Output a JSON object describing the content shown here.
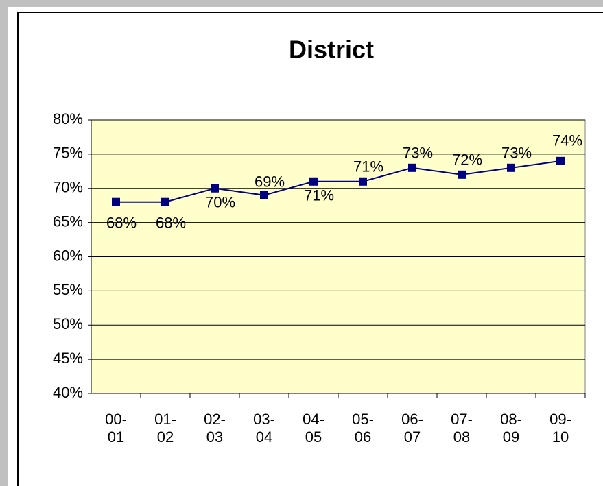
{
  "chart_data": {
    "type": "line",
    "title": "District",
    "categories": [
      "00-01",
      "01-02",
      "02-03",
      "03-04",
      "04-05",
      "05-06",
      "06-07",
      "07-08",
      "08-09",
      "09-10"
    ],
    "series": [
      {
        "name": "District",
        "color": "#000080",
        "values": [
          68,
          68,
          70,
          69,
          71,
          71,
          73,
          72,
          73,
          74
        ],
        "value_labels": [
          "68%",
          "68%",
          "70%",
          "69%",
          "71%",
          "71%",
          "73%",
          "72%",
          "73%",
          "74%"
        ]
      }
    ],
    "ylim": [
      40,
      80
    ],
    "yticks": [
      {
        "value": 40,
        "label": "40%"
      },
      {
        "value": 45,
        "label": "45%"
      },
      {
        "value": 50,
        "label": "50%"
      },
      {
        "value": 55,
        "label": "55%"
      },
      {
        "value": 60,
        "label": "60%"
      },
      {
        "value": 65,
        "label": "65%"
      },
      {
        "value": 70,
        "label": "70%"
      },
      {
        "value": 75,
        "label": "75%"
      },
      {
        "value": 80,
        "label": "80%"
      }
    ],
    "grid": true,
    "plot_background": "#ffffcc"
  }
}
